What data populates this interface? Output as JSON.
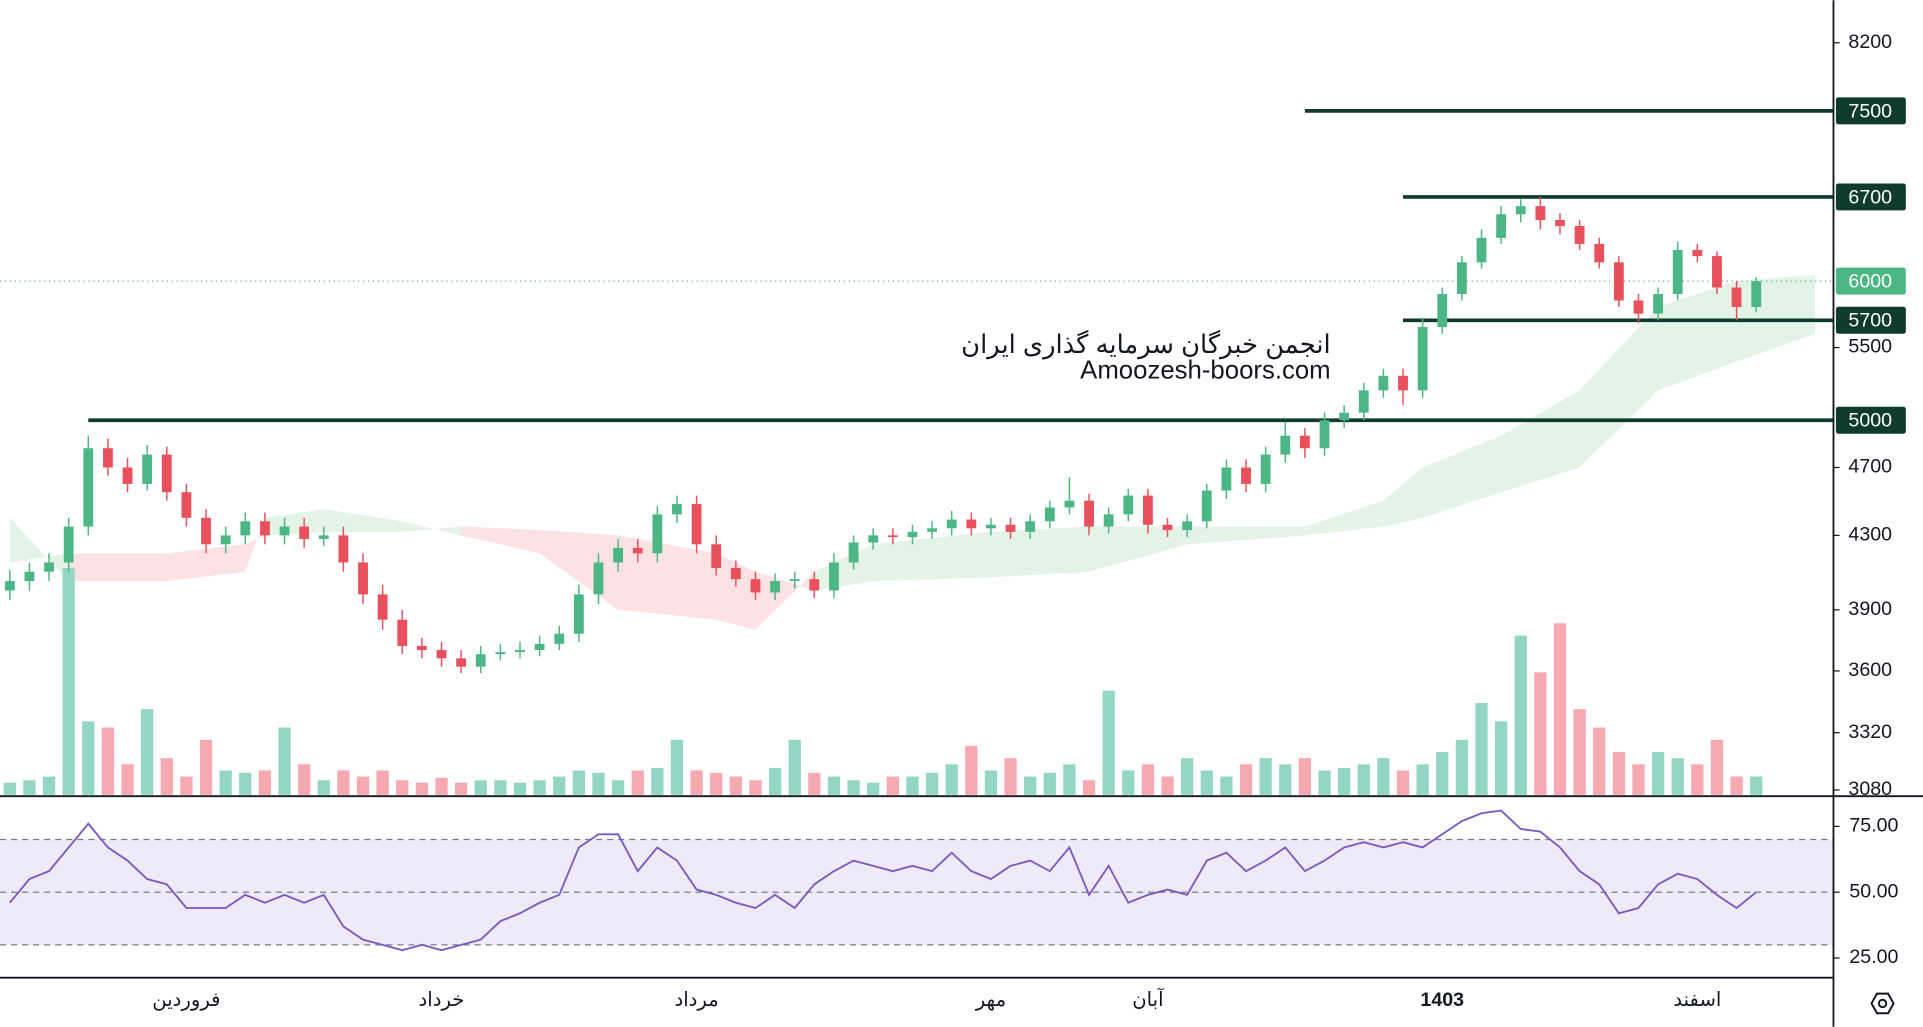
{
  "chart_data": {
    "type": "candlestick",
    "watermark": [
      "انجمن خبرگان سرمایه گذاری ایران",
      "Amoozesh-boors.com"
    ],
    "categories": [
      null,
      null,
      null,
      null,
      null,
      null,
      null,
      null,
      null,
      "فروردین",
      null,
      null,
      null,
      null,
      null,
      null,
      null,
      null,
      null,
      null,
      null,
      null,
      "خرداد",
      null,
      null,
      null,
      null,
      null,
      null,
      null,
      null,
      null,
      null,
      null,
      null,
      "مرداد",
      null,
      null,
      null,
      null,
      null,
      null,
      null,
      null,
      null,
      null,
      null,
      null,
      null,
      null,
      "مهر",
      null,
      null,
      null,
      null,
      null,
      null,
      null,
      "آبان",
      null,
      null,
      null,
      null,
      null,
      null,
      null,
      null,
      null,
      null,
      null,
      null,
      null,
      null,
      "1403",
      null,
      null,
      null,
      null,
      null,
      null,
      null,
      null,
      null,
      null,
      null,
      null,
      "اسفند",
      null,
      null,
      null
    ],
    "open": [
      4000,
      4050,
      4100,
      4150,
      4350,
      4820,
      4700,
      4600,
      4780,
      4550,
      4400,
      4250,
      4300,
      4380,
      4300,
      4350,
      4280,
      4300,
      4150,
      3980,
      3850,
      3720,
      3700,
      3660,
      3620,
      3680,
      3690,
      3700,
      3730,
      3780,
      3980,
      4150,
      4230,
      4200,
      4420,
      4480,
      4250,
      4120,
      4060,
      3990,
      4050,
      4060,
      4000,
      4150,
      4260,
      4300,
      4290,
      4320,
      4340,
      4390,
      4340,
      4360,
      4320,
      4380,
      4460,
      4500,
      4350,
      4420,
      4530,
      4360,
      4330,
      4380,
      4560,
      4700,
      4600,
      4780,
      4900,
      4820,
      5000,
      5050,
      5200,
      5300,
      5200,
      5650,
      5900,
      6150,
      6350,
      6550,
      6620,
      6500,
      6450,
      6300,
      6150,
      5850,
      5750,
      5900,
      6250,
      6200,
      5950,
      5800
    ],
    "high": [
      4110,
      4150,
      4200,
      4400,
      4900,
      4880,
      4760,
      4840,
      4830,
      4600,
      4450,
      4350,
      4430,
      4430,
      4400,
      4400,
      4350,
      4350,
      4200,
      4030,
      3900,
      3760,
      3740,
      3700,
      3720,
      3730,
      3740,
      3770,
      3820,
      4030,
      4200,
      4280,
      4280,
      4470,
      4530,
      4530,
      4300,
      4160,
      4100,
      4090,
      4100,
      4100,
      4200,
      4300,
      4340,
      4340,
      4360,
      4380,
      4440,
      4430,
      4400,
      4400,
      4420,
      4500,
      4640,
      4540,
      4460,
      4570,
      4570,
      4400,
      4420,
      4600,
      4750,
      4750,
      4830,
      4990,
      4950,
      5050,
      5100,
      5250,
      5350,
      5350,
      5720,
      5950,
      6200,
      6420,
      6620,
      6680,
      6700,
      6560,
      6500,
      6350,
      6200,
      5900,
      5950,
      6320,
      6300,
      6240,
      6000,
      6030
    ],
    "low": [
      3950,
      4000,
      4050,
      4100,
      4300,
      4650,
      4550,
      4560,
      4500,
      4350,
      4200,
      4200,
      4250,
      4250,
      4250,
      4230,
      4240,
      4100,
      3930,
      3800,
      3680,
      3660,
      3620,
      3590,
      3590,
      3650,
      3660,
      3670,
      3700,
      3740,
      3930,
      4100,
      4150,
      4150,
      4370,
      4200,
      4080,
      4020,
      3950,
      3950,
      4010,
      3960,
      3960,
      4110,
      4220,
      4250,
      4250,
      4280,
      4300,
      4300,
      4300,
      4280,
      4280,
      4340,
      4420,
      4300,
      4310,
      4380,
      4310,
      4290,
      4290,
      4340,
      4510,
      4550,
      4550,
      4730,
      4760,
      4770,
      4950,
      5000,
      5150,
      5100,
      5150,
      5600,
      5850,
      6100,
      6300,
      6480,
      6420,
      6380,
      6250,
      6100,
      5800,
      5680,
      5700,
      5850,
      6150,
      5900,
      5700,
      5760
    ],
    "close": [
      4050,
      4100,
      4150,
      4350,
      4820,
      4700,
      4600,
      4780,
      4550,
      4400,
      4250,
      4300,
      4380,
      4300,
      4350,
      4280,
      4300,
      4150,
      3980,
      3850,
      3720,
      3700,
      3660,
      3620,
      3680,
      3690,
      3700,
      3730,
      3780,
      3980,
      4150,
      4230,
      4200,
      4420,
      4480,
      4250,
      4120,
      4060,
      3990,
      4050,
      4060,
      4000,
      4150,
      4260,
      4300,
      4290,
      4320,
      4340,
      4390,
      4340,
      4360,
      4320,
      4380,
      4460,
      4500,
      4350,
      4420,
      4530,
      4360,
      4330,
      4380,
      4560,
      4700,
      4600,
      4780,
      4900,
      4820,
      5000,
      5050,
      5200,
      5300,
      5200,
      5650,
      5900,
      6150,
      6350,
      6550,
      6620,
      6500,
      6450,
      6300,
      6150,
      5850,
      5750,
      5900,
      6250,
      6200,
      5950,
      5800,
      6000
    ],
    "volume": [
      10,
      12,
      15,
      185,
      60,
      55,
      25,
      70,
      30,
      15,
      45,
      20,
      18,
      20,
      55,
      25,
      12,
      20,
      15,
      20,
      12,
      10,
      14,
      10,
      12,
      12,
      10,
      12,
      15,
      20,
      18,
      12,
      20,
      22,
      45,
      20,
      18,
      15,
      12,
      22,
      45,
      18,
      15,
      12,
      10,
      15,
      15,
      18,
      25,
      40,
      20,
      30,
      15,
      18,
      25,
      12,
      85,
      20,
      25,
      15,
      30,
      20,
      15,
      25,
      30,
      25,
      30,
      20,
      22,
      25,
      30,
      20,
      25,
      35,
      45,
      75,
      60,
      130,
      100,
      140,
      70,
      55,
      35,
      25,
      35,
      30,
      25,
      45,
      15,
      15
    ],
    "vlim": [
      0,
      200
    ],
    "up_color": "#4cb784",
    "down_color": "#e8505b",
    "up_volume_color": "#93d6c6",
    "down_volume_color": "#f6a9b1",
    "log_scale": true,
    "ylim": [
      3060,
      8670
    ],
    "yticks": [
      8200,
      5500,
      4700,
      4300,
      3900,
      3600,
      3320,
      3080
    ],
    "levels": [
      7500,
      6700,
      5700,
      5000
    ],
    "level_color": "#0e3b2c",
    "last_price": 6000,
    "last_price_color": "#4cb784",
    "cloud": {
      "x": [
        0,
        3,
        8,
        12,
        13,
        16,
        20,
        23,
        27,
        31,
        36,
        38,
        41,
        44,
        50,
        55,
        60,
        66,
        70,
        72,
        76,
        80,
        84,
        88,
        92
      ],
      "span_a": [
        4400,
        4050,
        4050,
        4100,
        4400,
        4450,
        4380,
        4300,
        4200,
        3900,
        3850,
        3800,
        4100,
        4250,
        4320,
        4350,
        4350,
        4350,
        4500,
        4700,
        4900,
        5200,
        5800,
        6000,
        6050
      ],
      "span_b": [
        4150,
        4200,
        4200,
        4250,
        4300,
        4320,
        4320,
        4350,
        4330,
        4300,
        4200,
        4100,
        4000,
        4050,
        4070,
        4100,
        4250,
        4300,
        4350,
        4400,
        4550,
        4700,
        5200,
        5400,
        5600
      ],
      "up_color": "#e3f3e6",
      "down_color": "#fde2e4"
    },
    "rsi": {
      "values": [
        46,
        55,
        58,
        67,
        76,
        67,
        62,
        55,
        53,
        44,
        44,
        44,
        49,
        46,
        49,
        46,
        49,
        37,
        32,
        30,
        28,
        30,
        28,
        30,
        32,
        39,
        42,
        46,
        49,
        67,
        72,
        72,
        58,
        67,
        62,
        51,
        49,
        46,
        44,
        49,
        44,
        53,
        58,
        62,
        60,
        58,
        60,
        58,
        65,
        58,
        55,
        60,
        62,
        58,
        67,
        49,
        60,
        46,
        49,
        51,
        49,
        62,
        65,
        58,
        62,
        67,
        58,
        62,
        67,
        69,
        67,
        69,
        67,
        72,
        77,
        80,
        81,
        74,
        73,
        67,
        58,
        53,
        42,
        44,
        53,
        57,
        55,
        49,
        44,
        50
      ],
      "color": "#7e57c2",
      "ylim": [
        18,
        86
      ],
      "yticks": [
        {
          "value": 75,
          "label": "75.00"
        },
        {
          "value": 50,
          "label": "50.00"
        },
        {
          "value": 25,
          "label": "25.00"
        }
      ],
      "bands": [
        30,
        70
      ],
      "midline": 50,
      "band_color": "#efeaf8"
    }
  }
}
